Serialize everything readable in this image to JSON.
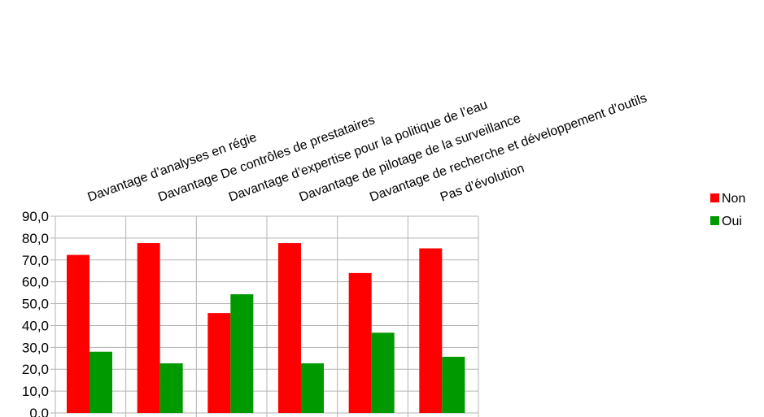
{
  "chart_data": {
    "type": "bar",
    "categories": [
      "Davantage d’analyses  en régie",
      "Davantage De contrôles de prestataires",
      "Davantage d’expertise pour la politique de l’eau",
      "Davantage de pilotage de la surveillance",
      "Davantage de recherche et développement d’outils",
      "Pas d’évolution"
    ],
    "series": [
      {
        "name": "Non",
        "color": "#ff0000",
        "values": [
          72.3,
          77.7,
          45.7,
          77.7,
          64.0,
          75.3
        ]
      },
      {
        "name": "Oui",
        "color": "#009900",
        "values": [
          28.0,
          22.7,
          54.3,
          22.7,
          36.7,
          25.7
        ]
      }
    ],
    "ylim": [
      0,
      90
    ],
    "ytick_step": 10,
    "ytick_labels": [
      "0,0",
      "10,0",
      "20,0",
      "30,0",
      "40,0",
      "50,0",
      "60,0",
      "70,0",
      "80,0",
      "90,0"
    ],
    "grid": true,
    "legend": "right",
    "xlabel": "",
    "ylabel": "",
    "title": ""
  }
}
